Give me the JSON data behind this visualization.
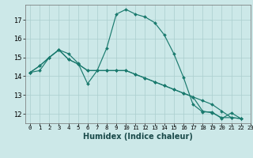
{
  "xlabel": "Humidex (Indice chaleur)",
  "bg_color": "#cce8e8",
  "line_color": "#1a7a6e",
  "grid_color": "#aacece",
  "xlim": [
    -0.5,
    23
  ],
  "ylim": [
    11.5,
    17.8
  ],
  "xticks": [
    0,
    1,
    2,
    3,
    4,
    5,
    6,
    7,
    8,
    9,
    10,
    11,
    12,
    13,
    14,
    15,
    16,
    17,
    18,
    19,
    20,
    21,
    22,
    23
  ],
  "yticks": [
    12,
    13,
    14,
    15,
    16,
    17
  ],
  "series": [
    [
      14.2,
      14.3,
      15.0,
      15.4,
      15.2,
      14.7,
      13.6,
      14.3,
      15.5,
      17.3,
      17.55,
      17.3,
      17.15,
      16.85,
      16.2,
      15.2,
      13.95,
      12.5,
      12.1,
      12.1,
      11.75,
      12.05,
      11.75
    ],
    [
      14.2,
      14.55,
      15.0,
      15.4,
      14.9,
      14.65,
      14.3,
      14.3,
      14.3,
      14.3,
      14.3,
      14.1,
      13.9,
      13.7,
      13.5,
      13.3,
      13.1,
      12.9,
      12.7,
      12.5,
      12.15,
      11.8,
      11.75
    ],
    [
      14.2,
      14.55,
      15.0,
      15.4,
      14.9,
      14.65,
      14.3,
      14.3,
      14.3,
      14.3,
      14.3,
      14.1,
      13.9,
      13.7,
      13.5,
      13.3,
      13.1,
      12.9,
      12.15,
      12.05,
      11.8,
      11.8,
      11.75
    ]
  ],
  "xlabel_fontsize": 7,
  "tick_fontsize": 6,
  "xlabel_fontweight": "bold",
  "xlabel_color": "#1a4a4a"
}
